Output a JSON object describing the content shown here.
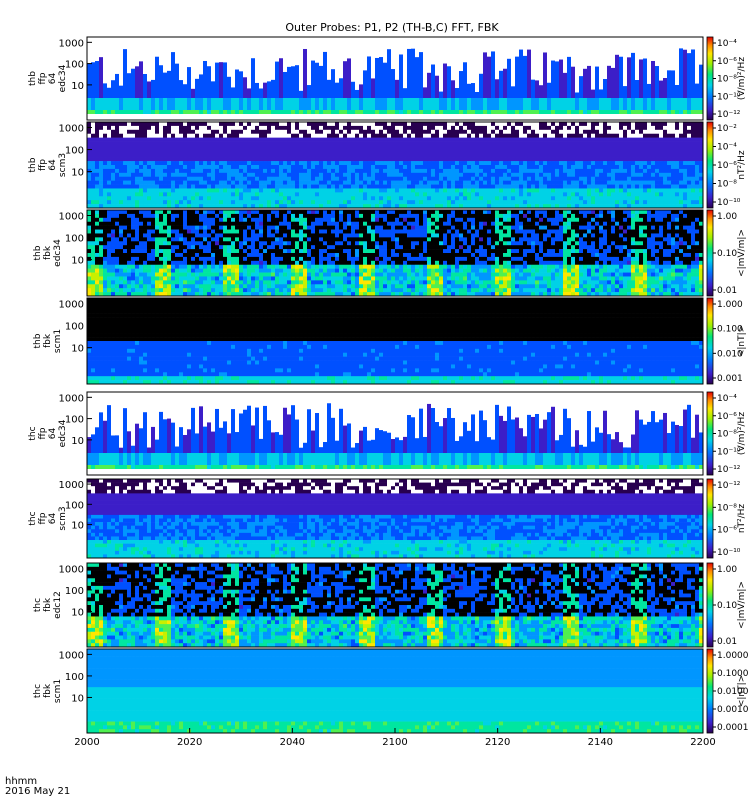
{
  "title": "Outer Probes: P1, P2 (TH-B,C) FFT, FBK",
  "corner": {
    "line1": "hhmm",
    "line2": "2016 May 21"
  },
  "chart_data": {
    "type": "heatmap",
    "title": "Outer Probes: P1, P2 (TH-B,C) FFT, FBK",
    "x_axis": {
      "tick_labels": [
        "2000",
        "2020",
        "2040",
        "2100",
        "2120",
        "2140",
        "2200"
      ],
      "label": "hhmm",
      "date": "2016 May 21",
      "range": [
        "20:00",
        "22:00"
      ]
    },
    "panels": [
      {
        "label": [
          "thb",
          "ffp",
          "64",
          "edc34"
        ],
        "y_ticks": [
          "1000",
          "100",
          "10"
        ],
        "log": true,
        "colorbar_ticks": [
          "10⁻⁴",
          "10⁻⁶",
          "10⁻⁸",
          "10⁻¹⁰",
          "10⁻¹²"
        ],
        "colorbar_label": "(V/m)²/Hz",
        "pattern": "spiky"
      },
      {
        "label": [
          "thb",
          "ffp",
          "64",
          "scm3"
        ],
        "y_ticks": [
          "1000",
          "100",
          "10"
        ],
        "log": true,
        "colorbar_ticks": [
          "10⁻²",
          "10⁻⁴",
          "10⁻⁶",
          "10⁻⁸",
          "10⁻¹⁰"
        ],
        "colorbar_label": "nT²/Hz",
        "pattern": "scm_fft"
      },
      {
        "label": [
          "thb",
          "fbk",
          "edc34"
        ],
        "y_ticks": [
          "1000",
          "100",
          "10"
        ],
        "log": true,
        "colorbar_ticks": [
          "1.00",
          "0.10",
          "0.01"
        ],
        "colorbar_label": "<|mV/m|>",
        "pattern": "fbk_e"
      },
      {
        "label": [
          "thb",
          "fbk",
          "scm1"
        ],
        "y_ticks": [
          "1000",
          "100",
          "10"
        ],
        "log": true,
        "colorbar_ticks": [
          "1.000",
          "0.100",
          "0.010",
          "0.001"
        ],
        "colorbar_label": "<|nT|>",
        "pattern": "fbk_b_dark"
      },
      {
        "label": [
          "thc",
          "ffp",
          "64",
          "edc34"
        ],
        "y_ticks": [
          "1000",
          "100",
          "10"
        ],
        "log": true,
        "colorbar_ticks": [
          "10⁻⁴",
          "10⁻⁶",
          "10⁻⁸",
          "10⁻¹⁰",
          "10⁻¹²"
        ],
        "colorbar_label": "(V/m)²/Hz",
        "pattern": "spiky"
      },
      {
        "label": [
          "thc",
          "ffp",
          "64",
          "scm3"
        ],
        "y_ticks": [
          "1000",
          "100",
          "10"
        ],
        "log": true,
        "colorbar_ticks": [
          "10⁻¹²",
          "10⁻⁸",
          "10⁻⁶",
          "10⁻¹⁰"
        ],
        "colorbar_label": "nT²/Hz",
        "pattern": "scm_fft"
      },
      {
        "label": [
          "thc",
          "fbk",
          "edc12"
        ],
        "y_ticks": [
          "1000",
          "100",
          "10"
        ],
        "log": true,
        "colorbar_ticks": [
          "1.00",
          "0.10",
          "0.01"
        ],
        "colorbar_label": "<|mV/m|>",
        "pattern": "fbk_e"
      },
      {
        "label": [
          "thc",
          "fbk",
          "scm1"
        ],
        "y_ticks": [
          "1000",
          "100",
          "10"
        ],
        "log": true,
        "colorbar_ticks": [
          "1.0000",
          "0.1000",
          "0.0100",
          "0.0010",
          "0.0001"
        ],
        "colorbar_label": "<|nT|>",
        "pattern": "fbk_b_light"
      }
    ]
  }
}
